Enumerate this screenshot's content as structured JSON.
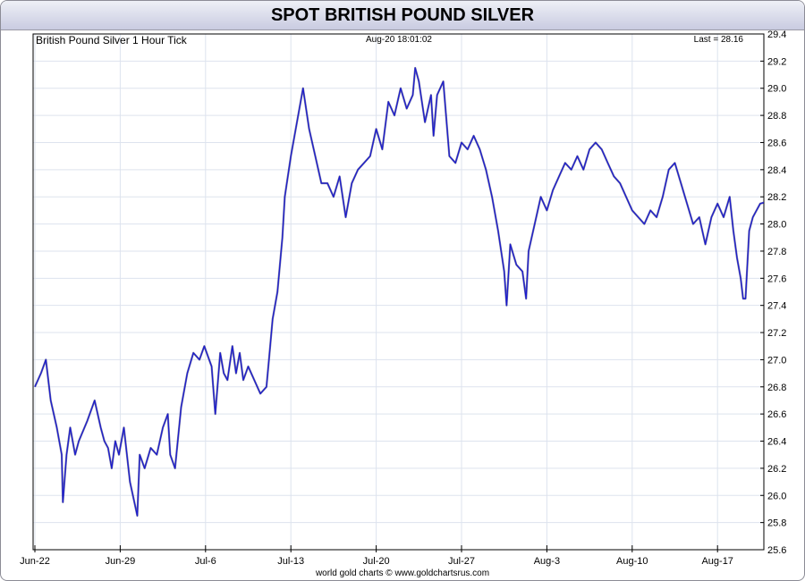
{
  "header": {
    "title": "SPOT BRITISH POUND SILVER"
  },
  "chart_data": {
    "type": "line",
    "subtitle_left": "British Pound Silver 1 Hour Tick",
    "subtitle_center": "Aug-20  18:01:02",
    "subtitle_right": "Last = 28.16",
    "footer": "world gold charts © www.goldchartsrus.com",
    "x_tick_labels": [
      "Jun-22",
      "Jun-29",
      "Jul-6",
      "Jul-13",
      "Jul-20",
      "Jul-27",
      "Aug-3",
      "Aug-10",
      "Aug-17"
    ],
    "x_range_days": [
      0,
      59.9
    ],
    "ylim": [
      25.6,
      29.4
    ],
    "y_ticks": [
      25.6,
      25.8,
      26.0,
      26.2,
      26.4,
      26.6,
      26.8,
      27.0,
      27.2,
      27.4,
      27.6,
      27.8,
      28.0,
      28.2,
      28.4,
      28.6,
      28.8,
      29.0,
      29.2,
      29.4
    ],
    "grid": true,
    "line_color": "#1a1ad0",
    "series": [
      {
        "x": [
          0,
          0.5,
          0.9,
          1.3,
          1.8,
          2.2,
          2.3,
          2.6,
          2.9,
          3.3,
          3.6,
          4.3,
          4.9,
          5.4,
          5.7,
          6.0,
          6.3,
          6.6,
          6.9,
          7.3,
          7.8,
          8.4,
          8.6,
          9.0,
          9.5,
          10.0,
          10.5,
          10.9,
          11.1,
          11.5,
          12.0,
          12.5,
          13.0,
          13.5,
          13.9,
          14.5,
          14.8,
          15.2,
          15.5,
          15.8,
          16.2,
          16.5,
          16.8,
          17.1,
          17.5,
          18.0,
          18.5,
          19.0,
          19.2,
          19.5,
          19.9,
          20.3,
          20.5,
          21.0,
          21.5,
          22.0,
          22.5,
          23.0,
          23.5,
          24.0,
          24.5,
          25.0,
          25.5,
          26.0,
          26.5,
          27.0,
          27.5,
          28.0,
          28.5,
          29.0,
          29.5,
          30.0,
          30.5,
          31.0,
          31.2,
          31.5,
          32.0,
          32.5,
          32.7,
          33.0,
          33.5,
          34.0,
          34.5,
          35.0,
          35.5,
          36.0,
          36.5,
          37.0,
          37.5,
          38.0,
          38.5,
          38.7,
          39.0,
          39.5,
          40.0,
          40.3,
          40.5,
          41.0,
          41.5,
          42.0,
          42.5,
          43.0,
          43.5,
          44.0,
          44.5,
          45.0,
          45.5,
          46.0,
          46.5,
          47.0,
          47.5,
          48.0,
          48.5,
          49.0,
          49.5,
          50.0,
          50.5,
          51.0,
          51.5,
          52.0,
          52.5,
          53.0,
          53.5,
          54.0,
          54.5,
          55.0,
          55.5,
          56.0,
          56.5,
          57.0,
          57.3,
          57.6,
          57.9,
          58.1,
          58.3,
          58.6,
          58.9,
          59.2,
          59.5,
          59.9
        ],
        "y": [
          26.8,
          26.9,
          27.0,
          26.7,
          26.5,
          26.3,
          25.95,
          26.3,
          26.5,
          26.3,
          26.4,
          26.55,
          26.7,
          26.5,
          26.4,
          26.35,
          26.2,
          26.4,
          26.3,
          26.5,
          26.1,
          25.85,
          26.3,
          26.2,
          26.35,
          26.3,
          26.5,
          26.6,
          26.3,
          26.2,
          26.65,
          26.9,
          27.05,
          27.0,
          27.1,
          26.95,
          26.6,
          27.05,
          26.9,
          26.85,
          27.1,
          26.9,
          27.05,
          26.85,
          26.95,
          26.85,
          26.75,
          26.8,
          27.0,
          27.3,
          27.5,
          27.9,
          28.2,
          28.5,
          28.75,
          29.0,
          28.7,
          28.5,
          28.3,
          28.3,
          28.2,
          28.35,
          28.05,
          28.3,
          28.4,
          28.45,
          28.5,
          28.7,
          28.55,
          28.9,
          28.8,
          29.0,
          28.85,
          28.95,
          29.15,
          29.05,
          28.75,
          28.95,
          28.65,
          28.95,
          29.05,
          28.5,
          28.45,
          28.6,
          28.55,
          28.65,
          28.55,
          28.4,
          28.2,
          27.95,
          27.65,
          27.4,
          27.85,
          27.7,
          27.65,
          27.45,
          27.8,
          28.0,
          28.2,
          28.1,
          28.25,
          28.35,
          28.45,
          28.4,
          28.5,
          28.4,
          28.55,
          28.6,
          28.55,
          28.45,
          28.35,
          28.3,
          28.2,
          28.1,
          28.05,
          28.0,
          28.1,
          28.05,
          28.2,
          28.4,
          28.45,
          28.3,
          28.15,
          28.0,
          28.05,
          27.85,
          28.05,
          28.15,
          28.05,
          28.2,
          27.95,
          27.75,
          27.6,
          27.45,
          27.45,
          27.95,
          28.05,
          28.1,
          28.15,
          28.16
        ]
      }
    ]
  }
}
